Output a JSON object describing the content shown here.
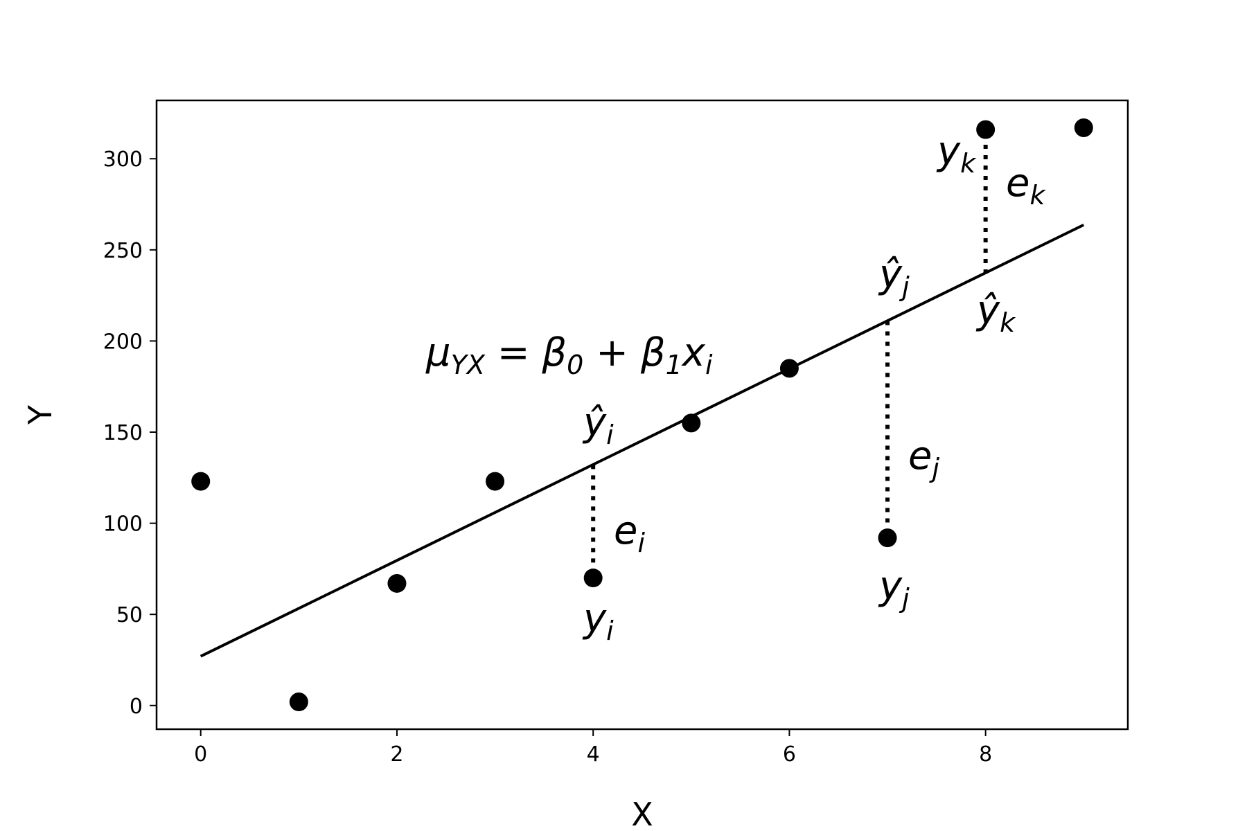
{
  "chart_data": {
    "type": "scatter",
    "title": "",
    "xlabel": "X",
    "ylabel": "Y",
    "xlim": [
      -0.45,
      9.45
    ],
    "ylim": [
      -13,
      332
    ],
    "xticks": [
      0,
      2,
      4,
      6,
      8
    ],
    "yticks": [
      0,
      50,
      100,
      150,
      200,
      250,
      300
    ],
    "grid": false,
    "points": {
      "x": [
        0,
        1,
        2,
        3,
        4,
        5,
        6,
        7,
        8,
        9
      ],
      "y": [
        123,
        2,
        67,
        123,
        70,
        155,
        185,
        92,
        316,
        317
      ]
    },
    "fit_line": {
      "intercept": 27,
      "slope": 26.3,
      "x_range": [
        0,
        9
      ]
    },
    "residuals": [
      {
        "x": 4,
        "y_obs": 70,
        "y_fit": 132
      },
      {
        "x": 7,
        "y_obs": 92,
        "y_fit": 211
      },
      {
        "x": 8,
        "y_obs": 316,
        "y_fit": 237
      }
    ],
    "annotations": {
      "equation": [
        "μ",
        "YX",
        " = β",
        "0",
        " + β",
        "1",
        "x",
        "i"
      ],
      "yhat_i": {
        "base": "ŷ",
        "sub": "i"
      },
      "e_i": {
        "base": "e",
        "sub": "i"
      },
      "y_i": {
        "base": "y",
        "sub": "i"
      },
      "yhat_j": {
        "base": "ŷ",
        "sub": "j"
      },
      "e_j": {
        "base": "e",
        "sub": "j"
      },
      "y_j": {
        "base": "y",
        "sub": "j"
      },
      "y_k": {
        "base": "y",
        "sub": "k"
      },
      "e_k": {
        "base": "e",
        "sub": "k"
      },
      "yhat_k": {
        "base": "ŷ",
        "sub": "k"
      }
    },
    "colors": {
      "points": "#000000",
      "line": "#000000"
    }
  }
}
